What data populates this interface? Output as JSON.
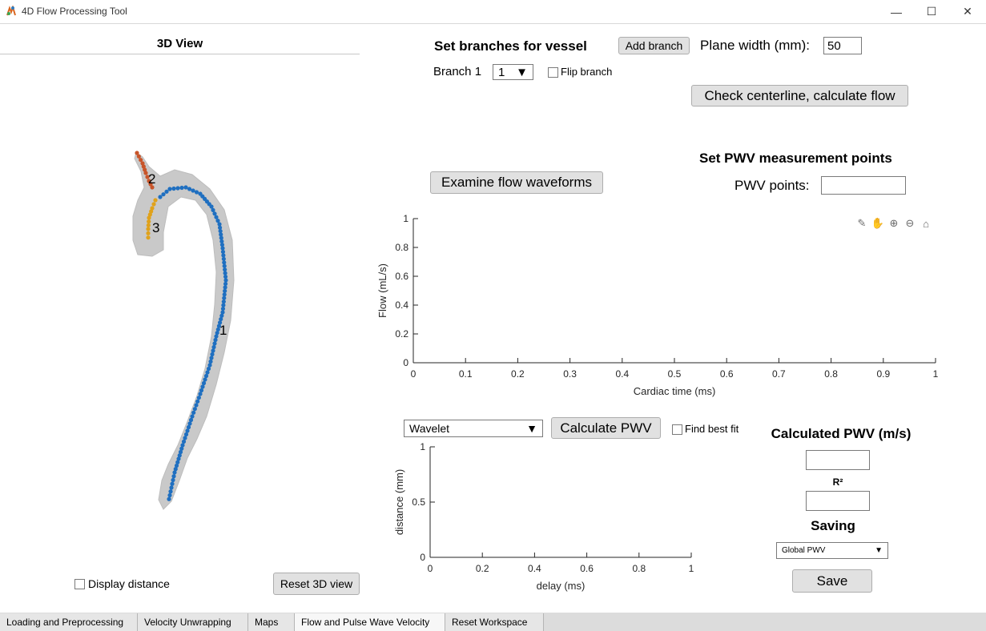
{
  "window": {
    "title": "4D Flow Processing Tool",
    "controls": {
      "minimize": "—",
      "maximize": "☐",
      "close": "✕"
    }
  },
  "view3d": {
    "title": "3D View",
    "branch_labels": [
      "1",
      "2",
      "3"
    ],
    "display_distance_label": "Display distance",
    "reset_button": "Reset 3D view"
  },
  "branches": {
    "header": "Set branches for vessel",
    "add_branch": "Add branch",
    "plane_width_label": "Plane width (mm):",
    "plane_width_value": "50",
    "branch_label": "Branch 1",
    "branch_select": "1",
    "flip_label": "Flip branch",
    "check_button": "Check centerline, calculate flow"
  },
  "pwv_points": {
    "header": "Set PWV measurement points",
    "label": "PWV points:",
    "value": ""
  },
  "examine_button": "Examine flow waveforms",
  "plot_toolbar": [
    "brush-icon",
    "pan-icon",
    "zoom-in-icon",
    "zoom-out-icon",
    "home-icon"
  ],
  "pwv_controls": {
    "method": "Wavelet",
    "calc_button": "Calculate PWV",
    "best_fit_label": "Find best fit"
  },
  "results": {
    "pwv_header": "Calculated PWV (m/s)",
    "pwv_value": "",
    "r2_label": "R²",
    "r2_value": "",
    "saving_header": "Saving",
    "save_option": "Global PWV",
    "save_button": "Save"
  },
  "tabs": [
    {
      "label": "Loading and Preprocessing",
      "active": false
    },
    {
      "label": "Velocity Unwrapping",
      "active": false
    },
    {
      "label": "Maps",
      "active": false
    },
    {
      "label": "Flow and Pulse Wave Velocity",
      "active": true
    },
    {
      "label": "Reset Workspace",
      "active": false
    }
  ],
  "chart_data": [
    {
      "type": "line",
      "xlabel": "Cardiac time (ms)",
      "ylabel": "Flow (mL/s)",
      "xlim": [
        0,
        1
      ],
      "ylim": [
        0,
        1
      ],
      "xticks": [
        "0",
        "0.1",
        "0.2",
        "0.3",
        "0.4",
        "0.5",
        "0.6",
        "0.7",
        "0.8",
        "0.9",
        "1"
      ],
      "yticks": [
        "0",
        "0.2",
        "0.4",
        "0.6",
        "0.8",
        "1"
      ],
      "series": []
    },
    {
      "type": "scatter",
      "xlabel": "delay (ms)",
      "ylabel": "distance (mm)",
      "xlim": [
        0,
        1
      ],
      "ylim": [
        0,
        1
      ],
      "xticks": [
        "0",
        "0.2",
        "0.4",
        "0.6",
        "0.8",
        "1"
      ],
      "yticks": [
        "0",
        "0.5",
        "1"
      ],
      "series": []
    }
  ]
}
